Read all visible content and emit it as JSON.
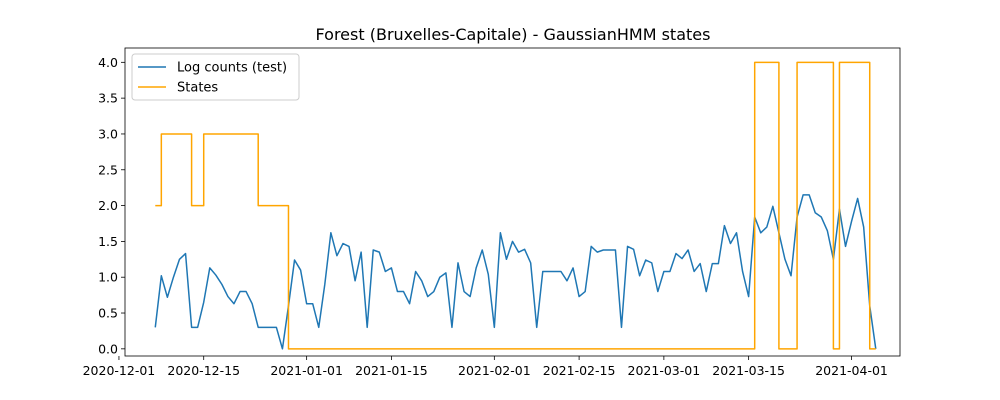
{
  "chart_data": {
    "type": "line",
    "title": "Forest (Bruxelles-Capitale) - GaussianHMM states",
    "xlabel": "",
    "ylabel": "",
    "x_type": "date",
    "xlim": [
      "2020-12-02",
      "2021-04-09"
    ],
    "ylim": [
      -0.1,
      4.2
    ],
    "grid": false,
    "legend_position": "upper left",
    "x_ticks": [
      "2020-12-01",
      "2020-12-15",
      "2021-01-01",
      "2021-01-15",
      "2021-02-01",
      "2021-02-15",
      "2021-03-01",
      "2021-03-15",
      "2021-04-01"
    ],
    "x_tick_labels": [
      "2020-12-01",
      "2020-12-15",
      "2021-01-01",
      "2021-01-15",
      "2021-02-01",
      "2021-02-15",
      "2021-03-01",
      "2021-03-15",
      "2021-04-01"
    ],
    "y_ticks": [
      0.0,
      0.5,
      1.0,
      1.5,
      2.0,
      2.5,
      3.0,
      3.5,
      4.0
    ],
    "y_tick_labels": [
      "0.0",
      "0.5",
      "1.0",
      "1.5",
      "2.0",
      "2.5",
      "3.0",
      "3.5",
      "4.0"
    ],
    "series": [
      {
        "name": "Log counts (test)",
        "color": "#1f77b4",
        "style": "line",
        "points": [
          [
            "2020-12-07",
            0.3
          ],
          [
            "2020-12-08",
            1.02
          ],
          [
            "2020-12-09",
            0.72
          ],
          [
            "2020-12-10",
            1.0
          ],
          [
            "2020-12-11",
            1.25
          ],
          [
            "2020-12-12",
            1.33
          ],
          [
            "2020-12-13",
            0.3
          ],
          [
            "2020-12-14",
            0.3
          ],
          [
            "2020-12-15",
            0.65
          ],
          [
            "2020-12-16",
            1.13
          ],
          [
            "2020-12-17",
            1.03
          ],
          [
            "2020-12-18",
            0.9
          ],
          [
            "2020-12-19",
            0.73
          ],
          [
            "2020-12-20",
            0.63
          ],
          [
            "2020-12-21",
            0.8
          ],
          [
            "2020-12-22",
            0.8
          ],
          [
            "2020-12-23",
            0.63
          ],
          [
            "2020-12-24",
            0.3
          ],
          [
            "2020-12-25",
            0.3
          ],
          [
            "2020-12-26",
            0.3
          ],
          [
            "2020-12-27",
            0.3
          ],
          [
            "2020-12-28",
            0.0
          ],
          [
            "2020-12-29",
            0.6
          ],
          [
            "2020-12-30",
            1.24
          ],
          [
            "2020-12-31",
            1.1
          ],
          [
            "2021-01-01",
            0.63
          ],
          [
            "2021-01-02",
            0.63
          ],
          [
            "2021-01-03",
            0.3
          ],
          [
            "2021-01-04",
            0.9
          ],
          [
            "2021-01-05",
            1.62
          ],
          [
            "2021-01-06",
            1.3
          ],
          [
            "2021-01-07",
            1.47
          ],
          [
            "2021-01-08",
            1.43
          ],
          [
            "2021-01-09",
            0.95
          ],
          [
            "2021-01-10",
            1.35
          ],
          [
            "2021-01-11",
            0.3
          ],
          [
            "2021-01-12",
            1.38
          ],
          [
            "2021-01-13",
            1.35
          ],
          [
            "2021-01-14",
            1.08
          ],
          [
            "2021-01-15",
            1.13
          ],
          [
            "2021-01-16",
            0.8
          ],
          [
            "2021-01-17",
            0.8
          ],
          [
            "2021-01-18",
            0.63
          ],
          [
            "2021-01-19",
            1.08
          ],
          [
            "2021-01-20",
            0.95
          ],
          [
            "2021-01-21",
            0.73
          ],
          [
            "2021-01-22",
            0.8
          ],
          [
            "2021-01-23",
            1.0
          ],
          [
            "2021-01-24",
            1.06
          ],
          [
            "2021-01-25",
            0.3
          ],
          [
            "2021-01-26",
            1.2
          ],
          [
            "2021-01-27",
            0.8
          ],
          [
            "2021-01-28",
            0.73
          ],
          [
            "2021-01-29",
            1.13
          ],
          [
            "2021-01-30",
            1.38
          ],
          [
            "2021-01-31",
            1.04
          ],
          [
            "2021-02-01",
            0.3
          ],
          [
            "2021-02-02",
            1.62
          ],
          [
            "2021-02-03",
            1.25
          ],
          [
            "2021-02-04",
            1.5
          ],
          [
            "2021-02-05",
            1.35
          ],
          [
            "2021-02-06",
            1.39
          ],
          [
            "2021-02-07",
            1.2
          ],
          [
            "2021-02-08",
            0.3
          ],
          [
            "2021-02-09",
            1.08
          ],
          [
            "2021-02-10",
            1.08
          ],
          [
            "2021-02-11",
            1.08
          ],
          [
            "2021-02-12",
            1.08
          ],
          [
            "2021-02-13",
            0.95
          ],
          [
            "2021-02-14",
            1.13
          ],
          [
            "2021-02-15",
            0.73
          ],
          [
            "2021-02-16",
            0.8
          ],
          [
            "2021-02-17",
            1.43
          ],
          [
            "2021-02-18",
            1.35
          ],
          [
            "2021-02-19",
            1.38
          ],
          [
            "2021-02-20",
            1.38
          ],
          [
            "2021-02-21",
            1.38
          ],
          [
            "2021-02-22",
            0.3
          ],
          [
            "2021-02-23",
            1.43
          ],
          [
            "2021-02-24",
            1.39
          ],
          [
            "2021-02-25",
            1.02
          ],
          [
            "2021-02-26",
            1.24
          ],
          [
            "2021-02-27",
            1.2
          ],
          [
            "2021-02-28",
            0.8
          ],
          [
            "2021-03-01",
            1.08
          ],
          [
            "2021-03-02",
            1.08
          ],
          [
            "2021-03-03",
            1.33
          ],
          [
            "2021-03-04",
            1.26
          ],
          [
            "2021-03-05",
            1.38
          ],
          [
            "2021-03-06",
            1.08
          ],
          [
            "2021-03-07",
            1.19
          ],
          [
            "2021-03-08",
            0.8
          ],
          [
            "2021-03-09",
            1.19
          ],
          [
            "2021-03-10",
            1.19
          ],
          [
            "2021-03-11",
            1.72
          ],
          [
            "2021-03-12",
            1.47
          ],
          [
            "2021-03-13",
            1.62
          ],
          [
            "2021-03-14",
            1.08
          ],
          [
            "2021-03-15",
            0.73
          ],
          [
            "2021-03-16",
            1.84
          ],
          [
            "2021-03-17",
            1.62
          ],
          [
            "2021-03-18",
            1.7
          ],
          [
            "2021-03-19",
            1.99
          ],
          [
            "2021-03-20",
            1.62
          ],
          [
            "2021-03-21",
            1.25
          ],
          [
            "2021-03-22",
            1.02
          ],
          [
            "2021-03-23",
            1.84
          ],
          [
            "2021-03-24",
            2.15
          ],
          [
            "2021-03-25",
            2.15
          ],
          [
            "2021-03-26",
            1.9
          ],
          [
            "2021-03-27",
            1.84
          ],
          [
            "2021-03-28",
            1.65
          ],
          [
            "2021-03-29",
            1.25
          ],
          [
            "2021-03-30",
            1.95
          ],
          [
            "2021-03-31",
            1.43
          ],
          [
            "2021-04-01",
            1.78
          ],
          [
            "2021-04-02",
            2.1
          ],
          [
            "2021-04-03",
            1.7
          ],
          [
            "2021-04-04",
            0.6
          ],
          [
            "2021-04-05",
            0.0
          ]
        ]
      },
      {
        "name": "States",
        "color": "#ffa500",
        "style": "steps",
        "points": [
          [
            "2020-12-07",
            2
          ],
          [
            "2020-12-08",
            3
          ],
          [
            "2020-12-09",
            3
          ],
          [
            "2020-12-10",
            3
          ],
          [
            "2020-12-11",
            3
          ],
          [
            "2020-12-12",
            3
          ],
          [
            "2020-12-13",
            2
          ],
          [
            "2020-12-14",
            2
          ],
          [
            "2020-12-15",
            3
          ],
          [
            "2020-12-16",
            3
          ],
          [
            "2020-12-17",
            3
          ],
          [
            "2020-12-18",
            3
          ],
          [
            "2020-12-19",
            3
          ],
          [
            "2020-12-20",
            3
          ],
          [
            "2020-12-21",
            3
          ],
          [
            "2020-12-22",
            3
          ],
          [
            "2020-12-23",
            3
          ],
          [
            "2020-12-24",
            2
          ],
          [
            "2020-12-25",
            2
          ],
          [
            "2020-12-26",
            2
          ],
          [
            "2020-12-27",
            2
          ],
          [
            "2020-12-28",
            2
          ],
          [
            "2020-12-29",
            0
          ],
          [
            "2021-03-15",
            0
          ],
          [
            "2021-03-16",
            4
          ],
          [
            "2021-03-17",
            4
          ],
          [
            "2021-03-18",
            4
          ],
          [
            "2021-03-19",
            4
          ],
          [
            "2021-03-20",
            0
          ],
          [
            "2021-03-21",
            0
          ],
          [
            "2021-03-22",
            0
          ],
          [
            "2021-03-23",
            4
          ],
          [
            "2021-03-24",
            4
          ],
          [
            "2021-03-25",
            4
          ],
          [
            "2021-03-26",
            4
          ],
          [
            "2021-03-27",
            4
          ],
          [
            "2021-03-28",
            4
          ],
          [
            "2021-03-29",
            0
          ],
          [
            "2021-03-30",
            4
          ],
          [
            "2021-03-31",
            4
          ],
          [
            "2021-04-01",
            4
          ],
          [
            "2021-04-02",
            4
          ],
          [
            "2021-04-03",
            4
          ],
          [
            "2021-04-04",
            0
          ],
          [
            "2021-04-05",
            0
          ]
        ]
      }
    ]
  }
}
